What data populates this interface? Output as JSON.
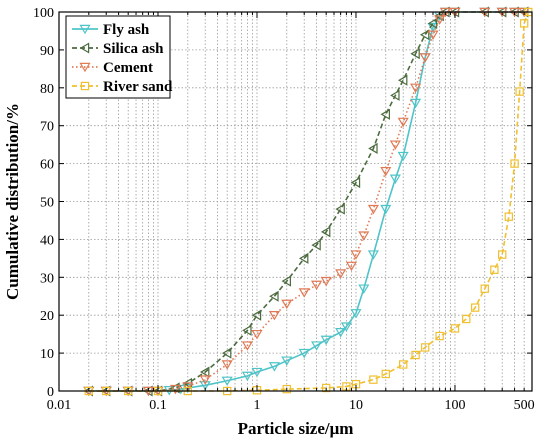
{
  "chart_data": {
    "type": "line",
    "xlabel": "Particle size/μm",
    "ylabel": "Cumulative distribution/%",
    "xscale": "log",
    "xlim": [
      0.01,
      600
    ],
    "ylim": [
      0,
      100
    ],
    "grid": "dotted",
    "legend_position": "top-left",
    "xticks": [
      {
        "value": 0.01,
        "label": "0.01"
      },
      {
        "value": 0.1,
        "label": "0.1"
      },
      {
        "value": 1,
        "label": "1"
      },
      {
        "value": 10,
        "label": "10"
      },
      {
        "value": 100,
        "label": "100"
      },
      {
        "value": 500,
        "label": "500"
      }
    ],
    "yticks": [
      0,
      10,
      20,
      30,
      40,
      50,
      60,
      70,
      80,
      90,
      100
    ],
    "series": [
      {
        "name": "Fly ash",
        "color": "#4fc4c8",
        "marker": "triangle-down",
        "line": "solid",
        "points": [
          [
            0.02,
            0
          ],
          [
            0.03,
            0
          ],
          [
            0.05,
            0
          ],
          [
            0.08,
            0
          ],
          [
            0.1,
            0
          ],
          [
            0.13,
            0.2
          ],
          [
            0.17,
            0.5
          ],
          [
            0.2,
            0.8
          ],
          [
            0.3,
            1.5
          ],
          [
            0.5,
            2.7
          ],
          [
            0.8,
            4
          ],
          [
            1,
            5
          ],
          [
            1.5,
            6.5
          ],
          [
            2,
            8
          ],
          [
            3,
            10
          ],
          [
            4,
            12
          ],
          [
            5,
            13.5
          ],
          [
            7,
            15.5
          ],
          [
            8,
            17
          ],
          [
            10,
            20.5
          ],
          [
            12,
            27
          ],
          [
            15,
            36
          ],
          [
            20,
            48
          ],
          [
            25,
            56
          ],
          [
            30,
            62
          ],
          [
            40,
            76
          ],
          [
            50,
            88
          ],
          [
            60,
            96
          ],
          [
            70,
            99
          ],
          [
            80,
            100
          ],
          [
            100,
            100
          ],
          [
            200,
            100
          ],
          [
            300,
            100
          ],
          [
            400,
            100
          ],
          [
            500,
            100
          ]
        ]
      },
      {
        "name": "Silica ash",
        "color": "#4c6b3e",
        "marker": "triangle-left",
        "line": "dashed",
        "points": [
          [
            0.02,
            0
          ],
          [
            0.03,
            0
          ],
          [
            0.05,
            0
          ],
          [
            0.08,
            0
          ],
          [
            0.1,
            0
          ],
          [
            0.15,
            0.8
          ],
          [
            0.2,
            2
          ],
          [
            0.3,
            5
          ],
          [
            0.5,
            10
          ],
          [
            0.8,
            16
          ],
          [
            1,
            20
          ],
          [
            1.5,
            25
          ],
          [
            2,
            29
          ],
          [
            3,
            35
          ],
          [
            4,
            38.5
          ],
          [
            5,
            42
          ],
          [
            7,
            48
          ],
          [
            10,
            55
          ],
          [
            15,
            64
          ],
          [
            20,
            73
          ],
          [
            25,
            78
          ],
          [
            30,
            82
          ],
          [
            40,
            89
          ],
          [
            50,
            94
          ],
          [
            60,
            97
          ],
          [
            70,
            99
          ],
          [
            80,
            100
          ],
          [
            100,
            100
          ],
          [
            200,
            100
          ],
          [
            300,
            100
          ],
          [
            400,
            100
          ],
          [
            500,
            100
          ]
        ]
      },
      {
        "name": "Cement",
        "color": "#e07a55",
        "marker": "triangle-down",
        "line": "dotted",
        "points": [
          [
            0.02,
            0
          ],
          [
            0.03,
            0
          ],
          [
            0.05,
            0
          ],
          [
            0.08,
            0
          ],
          [
            0.1,
            0
          ],
          [
            0.15,
            0.5
          ],
          [
            0.2,
            1.2
          ],
          [
            0.3,
            3
          ],
          [
            0.5,
            7
          ],
          [
            0.8,
            12
          ],
          [
            1,
            15
          ],
          [
            1.5,
            20
          ],
          [
            2,
            23
          ],
          [
            3,
            26
          ],
          [
            4,
            28
          ],
          [
            5,
            29
          ],
          [
            7,
            31
          ],
          [
            9,
            33
          ],
          [
            10,
            36
          ],
          [
            12,
            41
          ],
          [
            15,
            48
          ],
          [
            20,
            58
          ],
          [
            25,
            65
          ],
          [
            30,
            71
          ],
          [
            40,
            80
          ],
          [
            50,
            88
          ],
          [
            60,
            94
          ],
          [
            70,
            98
          ],
          [
            80,
            100
          ],
          [
            100,
            100
          ],
          [
            200,
            100
          ],
          [
            300,
            100
          ],
          [
            400,
            100
          ],
          [
            500,
            100
          ]
        ]
      },
      {
        "name": "River sand",
        "color": "#f0c030",
        "marker": "square",
        "line": "dashed",
        "points": [
          [
            0.02,
            0
          ],
          [
            0.03,
            0
          ],
          [
            0.05,
            0
          ],
          [
            0.1,
            0
          ],
          [
            0.2,
            0
          ],
          [
            0.5,
            0
          ],
          [
            1,
            0.2
          ],
          [
            2,
            0.5
          ],
          [
            5,
            0.8
          ],
          [
            8,
            1.2
          ],
          [
            10,
            1.8
          ],
          [
            15,
            3
          ],
          [
            20,
            4.5
          ],
          [
            30,
            7
          ],
          [
            40,
            9.5
          ],
          [
            50,
            11.5
          ],
          [
            70,
            14.5
          ],
          [
            100,
            16.5
          ],
          [
            130,
            19
          ],
          [
            160,
            22
          ],
          [
            200,
            27
          ],
          [
            250,
            32
          ],
          [
            300,
            36
          ],
          [
            350,
            46
          ],
          [
            400,
            60
          ],
          [
            450,
            79
          ],
          [
            500,
            97
          ],
          [
            550,
            100
          ]
        ]
      }
    ]
  }
}
